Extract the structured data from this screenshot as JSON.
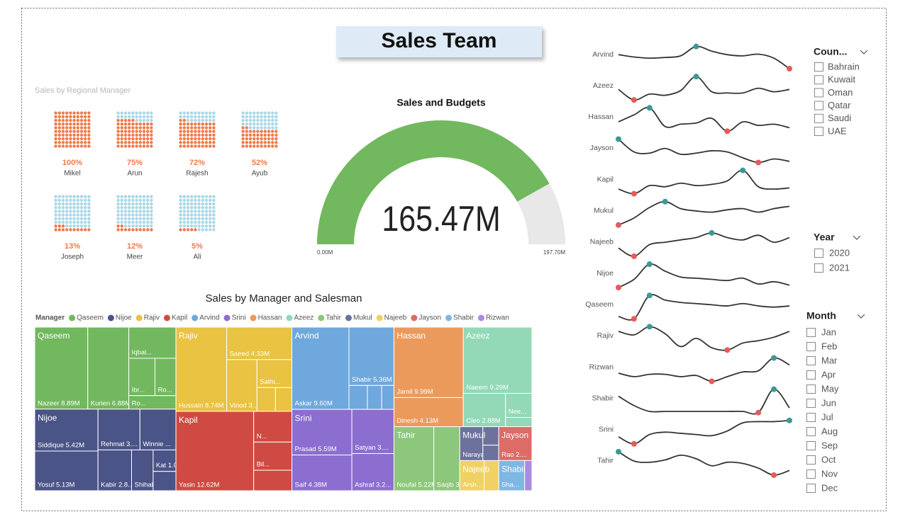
{
  "page_title": "Sales Team",
  "chart_data": [
    {
      "type": "waffle",
      "title": "Sales by Regional Manager",
      "categories": [
        "Mikel",
        "Arun",
        "Rajesh",
        "Ayub",
        "Joseph",
        "Meer",
        "Ali"
      ],
      "values": [
        100,
        75,
        72,
        52,
        13,
        12,
        5
      ],
      "value_labels": [
        "100%",
        "75%",
        "72%",
        "52%",
        "13%",
        "12%",
        "5%"
      ],
      "color": "#f07a4a",
      "empty_color": "#a9d8e6"
    },
    {
      "type": "gauge",
      "title": "Sales and Budgets",
      "values": [
        165.47
      ],
      "value_labels": [
        "165.47M"
      ],
      "ylim": [
        0,
        197.7
      ],
      "yticks": [
        {
          "value": 0,
          "label": "0.00M"
        },
        {
          "value": 197.7,
          "label": "197.70M"
        }
      ],
      "color": "#72b85e",
      "track_color": "#e8e8e8"
    },
    {
      "type": "treemap",
      "title": "Sales by Manager and Salesman",
      "legend_title": "Manager",
      "series": [
        {
          "name": "Qaseem",
          "color": "#72b85e",
          "children": [
            {
              "label": "Nazeer 8.89M",
              "value": 8.89
            },
            {
              "label": "Kurien 6.88M",
              "value": 6.88
            },
            {
              "label": "Iqbal...",
              "value": 3.0
            },
            {
              "label": "Ibr...",
              "value": 2.0
            },
            {
              "label": "Ro...",
              "value": 1.6
            },
            {
              "label": "Ro...",
              "value": 1.3
            }
          ]
        },
        {
          "name": "Nijoe",
          "color": "#4b5487",
          "children": [
            {
              "label": "Siddique 5.42M",
              "value": 5.42
            },
            {
              "label": "Yosuf 5.13M",
              "value": 5.13
            },
            {
              "label": "Rehmat 3....",
              "value": 3.5
            },
            {
              "label": "Winnie ...",
              "value": 3.0
            },
            {
              "label": "Kabir 2.8...",
              "value": 2.8
            },
            {
              "label": "Shihab...",
              "value": 1.8
            },
            {
              "label": "Kat 1.0...",
              "value": 1.0
            },
            {
              "label": null,
              "value": 0.9
            }
          ]
        },
        {
          "name": "Rajiv",
          "color": "#e9c341",
          "children": [
            {
              "label": "Hussain 8.74M",
              "value": 8.74
            },
            {
              "label": "Saeed 4.33M",
              "value": 4.33
            },
            {
              "label": "Vinod 3....",
              "value": 3.2
            },
            {
              "label": "Sathi...",
              "value": 2.0
            },
            {
              "label": null,
              "value": 0.9
            },
            {
              "label": null,
              "value": 0.8
            }
          ]
        },
        {
          "name": "Kapil",
          "color": "#cf4a43",
          "children": [
            {
              "label": "Yasin 12.62M",
              "value": 12.62
            },
            {
              "label": "N...",
              "value": 2.4
            },
            {
              "label": "Bil...",
              "value": 2.2
            },
            {
              "label": null,
              "value": 1.6
            }
          ]
        },
        {
          "name": "Arvind",
          "color": "#6fa8dc",
          "children": [
            {
              "label": "Askar 9.60M",
              "value": 9.6
            },
            {
              "label": "Shabir 5.36M",
              "value": 5.36
            },
            {
              "label": null,
              "value": 0.9
            },
            {
              "label": null,
              "value": 0.7
            },
            {
              "label": null,
              "value": 0.6
            }
          ]
        },
        {
          "name": "Srini",
          "color": "#8b6ecf",
          "children": [
            {
              "label": "Prasad 5.59M",
              "value": 5.59
            },
            {
              "label": "Saif 4.38M",
              "value": 4.38
            },
            {
              "label": "Satyan 3....",
              "value": 3.8
            },
            {
              "label": "Ashraf 3.2...",
              "value": 3.2
            }
          ]
        },
        {
          "name": "Hassan",
          "color": "#eb9a5c",
          "children": [
            {
              "label": "Jamil 9.99M",
              "value": 9.99
            },
            {
              "label": "Dinesh 4.13M",
              "value": 4.13
            }
          ]
        },
        {
          "name": "Azeez",
          "color": "#93d9b8",
          "children": [
            {
              "label": "Naeem 9.29M",
              "value": 9.29
            },
            {
              "label": "Cleo 2.88M",
              "value": 2.88
            },
            {
              "label": "Nee...",
              "value": 1.3
            },
            {
              "label": null,
              "value": 0.5
            }
          ]
        },
        {
          "name": "Tahir",
          "color": "#8dc77b",
          "children": [
            {
              "label": "Noufal 5.22M",
              "value": 5.22
            },
            {
              "label": "Saqib 3.40M",
              "value": 3.4
            }
          ]
        },
        {
          "name": "Mukul",
          "color": "#6c729b",
          "children": [
            {
              "label": "Naraya...",
              "value": 1.6
            },
            {
              "label": null,
              "value": 0.6
            },
            {
              "label": null,
              "value": 0.5
            }
          ]
        },
        {
          "name": "Najeeb",
          "color": "#f0d163",
          "children": [
            {
              "label": "Arsh...",
              "value": 1.5
            },
            {
              "label": null,
              "value": 0.9
            }
          ]
        },
        {
          "name": "Jayson",
          "color": "#dd6b66",
          "children": [
            {
              "label": "Rao 2....",
              "value": 2.3
            }
          ]
        },
        {
          "name": "Shabir",
          "color": "#7fb7e3",
          "children": [
            {
              "label": "Sha...",
              "value": 1.6
            }
          ]
        },
        {
          "name": "Rizwan",
          "color": "#a98be0",
          "children": [
            {
              "label": null,
              "value": 0.45
            }
          ]
        }
      ]
    },
    {
      "type": "sparkline",
      "ylim": [
        0,
        100
      ],
      "color": "#333333",
      "high_color": "#3a9a96",
      "low_color": "#e45b5b",
      "series": [
        {
          "name": "Arvind",
          "values": [
            60,
            50,
            45,
            48,
            55,
            95,
            75,
            60,
            55,
            62,
            45,
            0
          ]
        },
        {
          "name": "Azeez",
          "values": [
            45,
            0,
            25,
            20,
            40,
            100,
            35,
            30,
            30,
            50,
            35,
            45
          ]
        },
        {
          "name": "Hassan",
          "values": [
            40,
            70,
            100,
            20,
            30,
            35,
            55,
            0,
            40,
            25,
            30,
            15
          ]
        },
        {
          "name": "Jayson",
          "values": [
            100,
            45,
            40,
            60,
            35,
            40,
            50,
            45,
            20,
            0,
            15,
            5
          ]
        },
        {
          "name": "Kapil",
          "values": [
            20,
            0,
            35,
            30,
            45,
            35,
            40,
            55,
            100,
            30,
            20,
            25
          ]
        },
        {
          "name": "Mukul",
          "values": [
            0,
            30,
            75,
            100,
            70,
            60,
            55,
            65,
            70,
            55,
            70,
            80
          ]
        },
        {
          "name": "Najeeb",
          "values": [
            35,
            0,
            50,
            60,
            70,
            80,
            100,
            80,
            70,
            90,
            60,
            80
          ]
        },
        {
          "name": "Nijoe",
          "values": [
            0,
            35,
            100,
            70,
            45,
            40,
            35,
            30,
            40,
            15,
            25,
            10
          ]
        },
        {
          "name": "Qaseem",
          "values": [
            10,
            0,
            100,
            80,
            70,
            65,
            60,
            55,
            65,
            55,
            50,
            55
          ]
        },
        {
          "name": "Rajiv",
          "values": [
            80,
            65,
            100,
            70,
            15,
            50,
            10,
            0,
            30,
            40,
            55,
            80
          ]
        },
        {
          "name": "Rizwan",
          "values": [
            35,
            20,
            30,
            30,
            20,
            25,
            0,
            20,
            40,
            45,
            100,
            70
          ]
        },
        {
          "name": "Shabir",
          "values": [
            70,
            30,
            5,
            5,
            5,
            5,
            5,
            5,
            5,
            0,
            100,
            20
          ]
        },
        {
          "name": "Srini",
          "values": [
            30,
            0,
            40,
            50,
            45,
            40,
            35,
            55,
            90,
            95,
            95,
            100
          ]
        },
        {
          "name": "Tahir",
          "values": [
            100,
            60,
            55,
            65,
            85,
            70,
            40,
            55,
            50,
            30,
            0,
            20
          ]
        }
      ]
    }
  ],
  "slicers": [
    {
      "title": "Coun...",
      "items": [
        "Bahrain",
        "Kuwait",
        "Oman",
        "Qatar",
        "Saudi",
        "UAE"
      ]
    },
    {
      "title": "Year",
      "items": [
        "2020",
        "2021"
      ]
    },
    {
      "title": "Month",
      "items": [
        "Jan",
        "Feb",
        "Mar",
        "Apr",
        "May",
        "Jun",
        "Jul",
        "Aug",
        "Sep",
        "Oct",
        "Nov",
        "Dec"
      ]
    }
  ]
}
